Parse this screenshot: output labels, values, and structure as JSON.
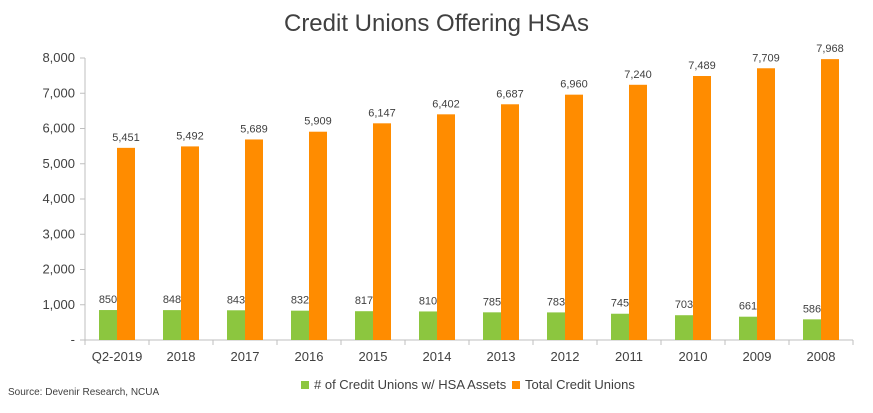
{
  "title": "Credit Unions Offering HSAs",
  "source": "Source: Devenir Research, NCUA",
  "colors": {
    "hsa": "#8CC63F",
    "total": "#FF8C00",
    "axis": "#bfbfbf",
    "text": "#404040"
  },
  "chart_data": {
    "type": "bar",
    "title": "Credit Unions Offering HSAs",
    "xlabel": "",
    "ylabel": "",
    "ylim": [
      0,
      8000
    ],
    "yticks": [
      0,
      1000,
      2000,
      3000,
      4000,
      5000,
      6000,
      7000,
      8000
    ],
    "ytick_labels": [
      "-",
      "1,000",
      "2,000",
      "3,000",
      "4,000",
      "5,000",
      "6,000",
      "7,000",
      "8,000"
    ],
    "grid": false,
    "legend": "bottom",
    "categories": [
      "Q2-2019",
      "2018",
      "2017",
      "2016",
      "2015",
      "2014",
      "2013",
      "2012",
      "2011",
      "2010",
      "2009",
      "2008"
    ],
    "series": [
      {
        "name": "# of Credit Unions w/ HSA Assets",
        "color": "#8CC63F",
        "values": [
          850,
          848,
          843,
          832,
          817,
          810,
          785,
          783,
          745,
          703,
          661,
          586
        ],
        "labels": [
          "850",
          "848",
          "843",
          "832",
          "817",
          "810",
          "785",
          "783",
          "745",
          "703",
          "661",
          "586"
        ]
      },
      {
        "name": "Total Credit Unions",
        "color": "#FF8C00",
        "values": [
          5451,
          5492,
          5689,
          5909,
          6147,
          6402,
          6687,
          6960,
          7240,
          7489,
          7709,
          7968
        ],
        "labels": [
          "5,451",
          "5,492",
          "5,689",
          "5,909",
          "6,147",
          "6,402",
          "6,687",
          "6,960",
          "7,240",
          "7,489",
          "7,709",
          "7,968"
        ]
      }
    ]
  }
}
